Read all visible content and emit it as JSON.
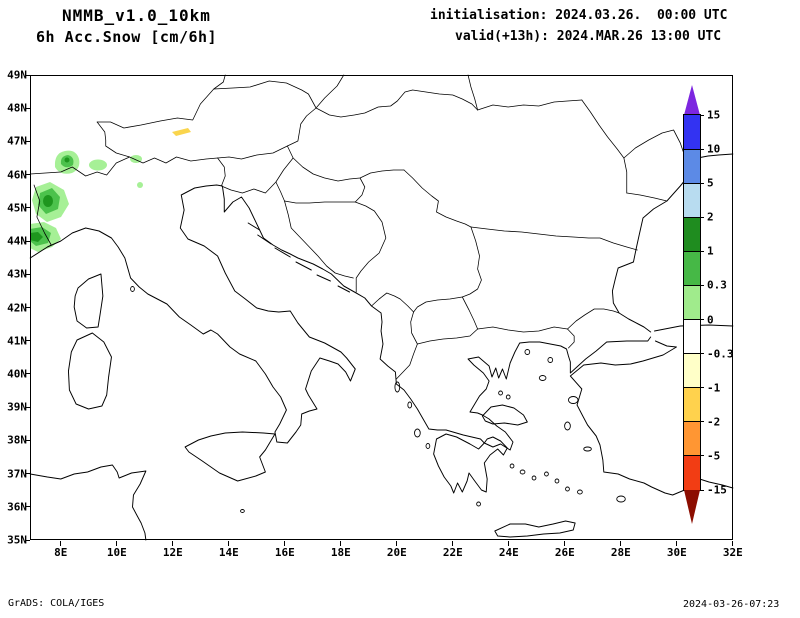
{
  "header": {
    "line1": "NMMB_v1.0_10km",
    "line2": "6h Acc.Snow [cm/6h]",
    "init": "initialisation: 2024.03.26.  00:00 UTC",
    "valid": "valid(+13h): 2024.MAR.26 13:00 UTC"
  },
  "map": {
    "lat_labels": [
      "49N",
      "48N",
      "47N",
      "46N",
      "45N",
      "44N",
      "43N",
      "42N",
      "41N",
      "40N",
      "39N",
      "38N",
      "37N",
      "36N",
      "35N"
    ],
    "lon_labels": [
      "8E",
      "10E",
      "12E",
      "14E",
      "16E",
      "18E",
      "20E",
      "22E",
      "24E",
      "26E",
      "28E",
      "30E",
      "32E"
    ]
  },
  "colorbar": {
    "labels": [
      "15",
      "10",
      "5",
      "2",
      "1",
      "0.3",
      "0",
      "-0.3",
      "-1",
      "-2",
      "-5",
      "-15"
    ],
    "top_arrow_color": "#7d26e0",
    "box_colors": [
      "#3333f2",
      "#5c8ae6",
      "#b8dcf0",
      "#1f8c1f",
      "#46b846",
      "#a0eb8c",
      "#ffffff",
      "#ffffc8",
      "#ffd24d",
      "#ff9633",
      "#f23d14"
    ],
    "bottom_arrow_color": "#8c0d00",
    "snow_light_green": "#a6f096",
    "snow_green": "#4cc24c",
    "snow_dark_green": "#1e961e",
    "snow_yellow": "#fad54d"
  },
  "footer": {
    "left": "GrADS: COLA/IGES",
    "right": "2024-03-26-07:23"
  },
  "chart_data": {
    "type": "map",
    "title": "NMMB_v1.0_10km 6h Acc.Snow [cm/6h]",
    "region": {
      "lon_min": "8E",
      "lon_max": "32E",
      "lat_min": "35N",
      "lat_max": "49N"
    },
    "contour_levels_cm": [
      -15,
      -5,
      -2,
      -1,
      -0.3,
      0,
      0.3,
      1,
      2,
      5,
      10,
      15
    ],
    "shaded_areas": [
      {
        "location": "Western Alps / NW Italy (approx 8-10E, 44-46.5N)",
        "value_cm": "0.3 to 2"
      },
      {
        "location": "Small spot in Eastern Alps (approx 13E, 47.3N)",
        "value_cm": "-0.3 to -1"
      }
    ]
  }
}
